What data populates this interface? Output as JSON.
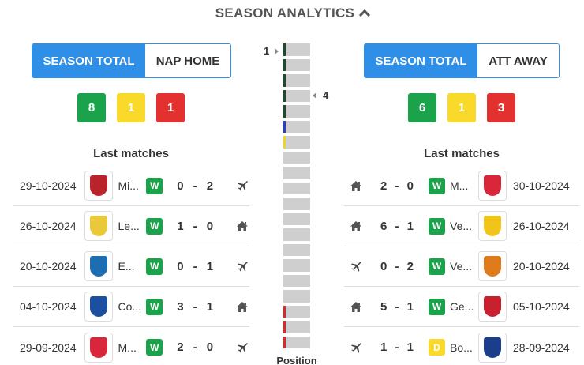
{
  "header": {
    "title": "SEASON ANALYTICS"
  },
  "left": {
    "tabs": [
      "SEASON TOTAL",
      "NAP HOME"
    ],
    "record": {
      "wins": "8",
      "draws": "1",
      "losses": "1"
    },
    "last_matches_title": "Last matches",
    "matches": [
      {
        "date": "29-10-2024",
        "team": "Mi...",
        "result": "W",
        "score_a": "0",
        "score_b": "2",
        "venue": "away",
        "crest_color": "#b8242a"
      },
      {
        "date": "26-10-2024",
        "team": "Le...",
        "result": "W",
        "score_a": "1",
        "score_b": "0",
        "venue": "home",
        "crest_color": "#e9c93a"
      },
      {
        "date": "20-10-2024",
        "team": "E...",
        "result": "W",
        "score_a": "0",
        "score_b": "1",
        "venue": "away",
        "crest_color": "#1d6db3"
      },
      {
        "date": "04-10-2024",
        "team": "Co...",
        "result": "W",
        "score_a": "3",
        "score_b": "1",
        "venue": "home",
        "crest_color": "#1b4fa0"
      },
      {
        "date": "29-09-2024",
        "team": "M...",
        "result": "W",
        "score_a": "2",
        "score_b": "0",
        "venue": "away",
        "crest_color": "#d9263b"
      }
    ]
  },
  "right": {
    "tabs": [
      "SEASON TOTAL",
      "ATT AWAY"
    ],
    "record": {
      "wins": "6",
      "draws": "1",
      "losses": "3"
    },
    "last_matches_title": "Last matches",
    "matches": [
      {
        "venue": "home",
        "score_a": "2",
        "score_b": "0",
        "result": "W",
        "team": "M...",
        "date": "30-10-2024",
        "crest_color": "#d9263b"
      },
      {
        "venue": "home",
        "score_a": "6",
        "score_b": "1",
        "result": "W",
        "team": "Ve...",
        "date": "26-10-2024",
        "crest_color": "#f0c419"
      },
      {
        "venue": "away",
        "score_a": "0",
        "score_b": "2",
        "result": "W",
        "team": "Ve...",
        "date": "20-10-2024",
        "crest_color": "#e07b1c"
      },
      {
        "venue": "home",
        "score_a": "5",
        "score_b": "1",
        "result": "W",
        "team": "Ge...",
        "date": "05-10-2024",
        "crest_color": "#c8202f"
      },
      {
        "venue": "away",
        "score_a": "1",
        "score_b": "1",
        "result": "D",
        "team": "Bo...",
        "date": "28-09-2024",
        "crest_color": "#1b3e8c"
      }
    ]
  },
  "standings": {
    "top_label": "1",
    "other_label": "4",
    "caption": "Position",
    "slots": 20,
    "marks": [
      "#1a4d2e",
      "#1a4d2e",
      "#1a4d2e",
      "#1a4d2e",
      "#1a4d2e",
      "#2740c9",
      "#f0d22c",
      "",
      "",
      "",
      "",
      "",
      "",
      "",
      "",
      "",
      "",
      "#d72b2b",
      "#d72b2b",
      "#d72b2b"
    ],
    "left_team_position": 1,
    "right_team_position": 4
  },
  "colors": {
    "accent": "#2f8ee6",
    "win": "#1aa34a",
    "draw": "#f9d92a",
    "loss": "#e3312f"
  }
}
